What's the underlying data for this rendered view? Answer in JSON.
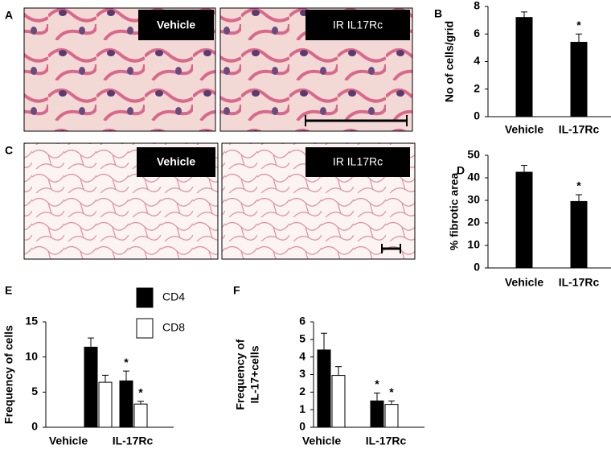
{
  "images": [
    {
      "panel": "A",
      "labels": [
        "Vehicle",
        "IR IL17Rc"
      ]
    },
    {
      "panel": "C",
      "labels": [
        "Vehicle",
        "IR IL17Rc"
      ]
    }
  ],
  "chart_data": [
    {
      "type": "bar",
      "panel": "B",
      "ylabel": [
        "No of cells/grid"
      ],
      "categories": [
        "Vehicle",
        "IL-17Rc"
      ],
      "series": [
        {
          "color": "#000000",
          "values": [
            7.2,
            5.4
          ],
          "errors": [
            0.4,
            0.6
          ],
          "annotations": [
            null,
            "*"
          ]
        }
      ],
      "ylim": [
        0,
        8
      ],
      "yticks": [
        0,
        2,
        4,
        6,
        8
      ],
      "legend": false
    },
    {
      "type": "bar",
      "panel": "D",
      "ylabel": [
        "% fibrotic area"
      ],
      "categories": [
        "Vehicle",
        "IL-17Rc"
      ],
      "series": [
        {
          "color": "#000000",
          "values": [
            42.5,
            29.5
          ],
          "errors": [
            3,
            3
          ],
          "annotations": [
            null,
            "*"
          ]
        }
      ],
      "ylim": [
        0,
        50
      ],
      "yticks": [
        0,
        10,
        20,
        30,
        40,
        50
      ],
      "legend": false
    },
    {
      "type": "bar",
      "panel": "E",
      "ylabel": [
        "Frequency of cells"
      ],
      "categories": [
        "Vehicle",
        "IL-17Rc"
      ],
      "series": [
        {
          "name": "CD4",
          "color": "#000000",
          "values": [
            11.4,
            6.6
          ],
          "errors": [
            1.3,
            1.4
          ],
          "annotations": [
            null,
            "*"
          ]
        },
        {
          "name": "CD8",
          "color": "#ffffff",
          "values": [
            6.4,
            3.3
          ],
          "errors": [
            1.0,
            0.4
          ],
          "annotations": [
            null,
            "*"
          ]
        }
      ],
      "ylim": [
        0,
        15
      ],
      "yticks": [
        0,
        5,
        10,
        15
      ],
      "legend": true
    },
    {
      "type": "bar",
      "panel": "F",
      "ylabel": [
        "Frequency of",
        "IL-17+cells"
      ],
      "categories": [
        "Vehicle",
        "IL-17Rc"
      ],
      "series": [
        {
          "color": "#000000",
          "values": [
            4.4,
            1.5
          ],
          "errors": [
            0.95,
            0.45
          ],
          "annotations": [
            null,
            "*"
          ]
        },
        {
          "color": "#ffffff",
          "values": [
            2.95,
            1.3
          ],
          "errors": [
            0.5,
            0.2
          ],
          "annotations": [
            null,
            "*"
          ]
        }
      ],
      "ylim": [
        0,
        6
      ],
      "yticks": [
        0,
        1,
        2,
        3,
        4,
        5,
        6
      ],
      "legend": false
    }
  ]
}
